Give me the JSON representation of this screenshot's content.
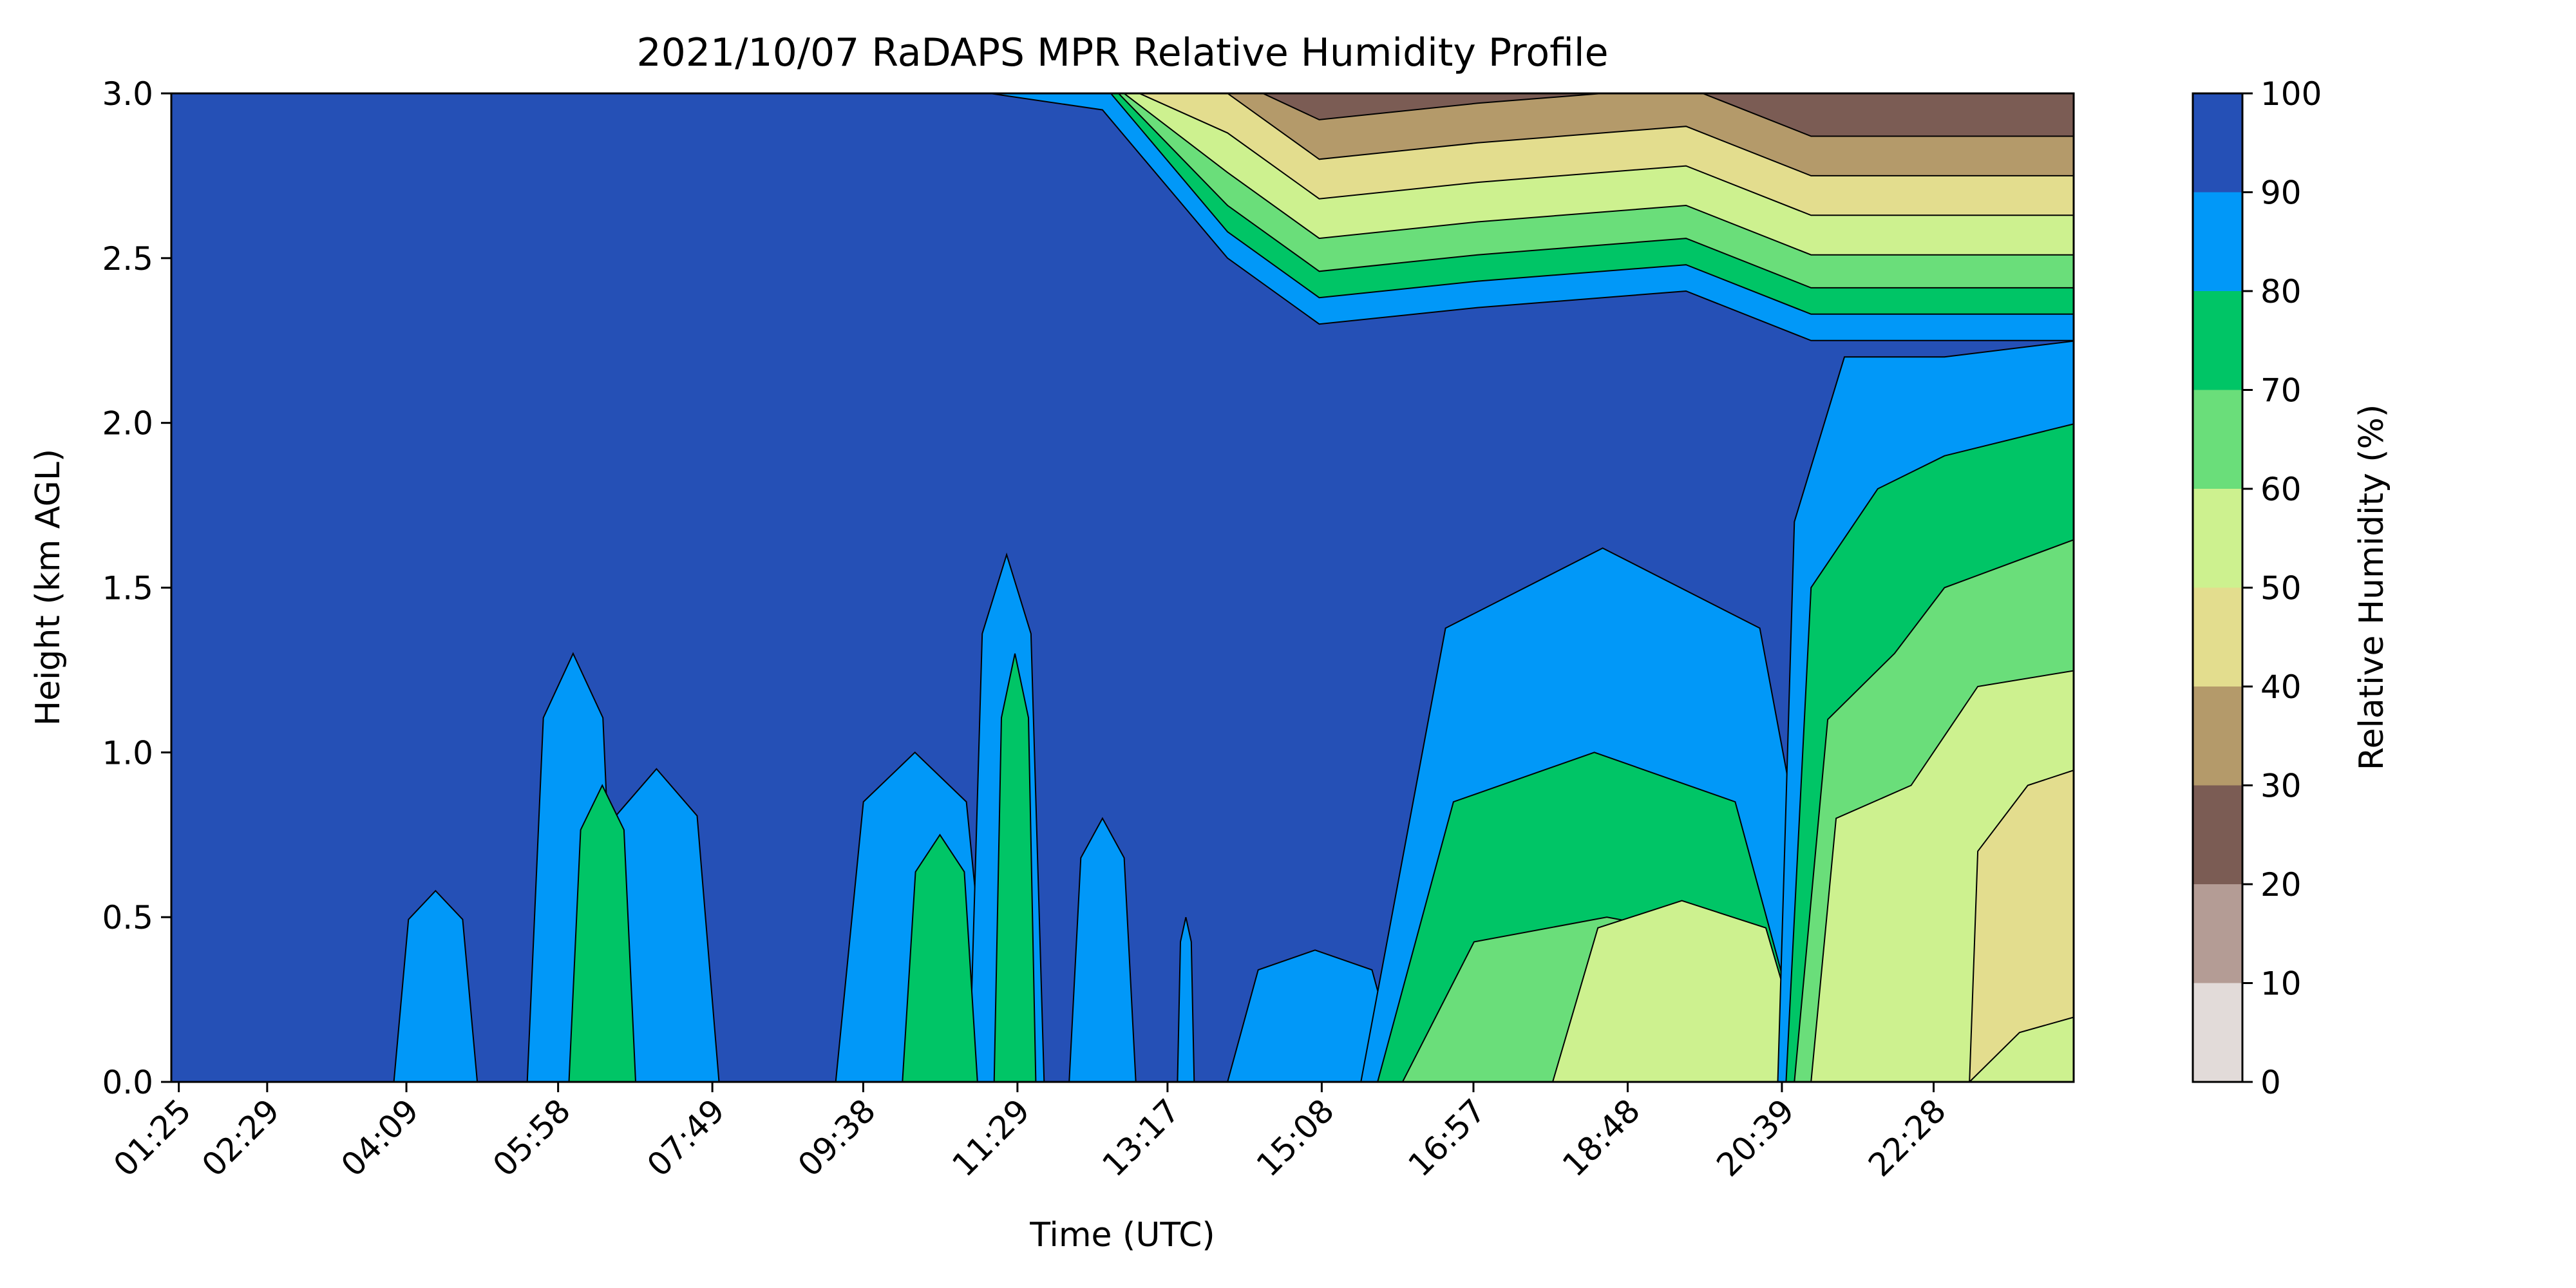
{
  "chart_data": {
    "type": "heatmap",
    "title": "2021/10/07 RaDAPS MPR Relative Humidity Profile",
    "xlabel": "Time (UTC)",
    "ylabel": "Height (km AGL)",
    "ylim": [
      0,
      3
    ],
    "yticks": [
      "0.0",
      "0.5",
      "1.0",
      "1.5",
      "2.0",
      "2.5",
      "3.0"
    ],
    "xticks": [
      "01:25",
      "02:29",
      "04:09",
      "05:58",
      "07:49",
      "09:38",
      "11:29",
      "13:17",
      "15:08",
      "16:57",
      "18:48",
      "20:39",
      "22:28"
    ],
    "x_hours": [
      1.42,
      2.48,
      4.15,
      5.97,
      7.82,
      9.63,
      11.48,
      13.28,
      15.13,
      16.95,
      18.8,
      20.65,
      22.47
    ],
    "xlim_hours": [
      1.33,
      24.15
    ],
    "colorbar": {
      "label": "Relative Humidity (%)",
      "ticks": [
        "0",
        "10",
        "20",
        "30",
        "40",
        "50",
        "60",
        "70",
        "80",
        "90",
        "100"
      ],
      "levels": [
        0,
        10,
        20,
        30,
        40,
        50,
        60,
        70,
        80,
        90,
        100
      ],
      "colors": [
        "#e2dbd9",
        "#b49c95",
        "#7b5c54",
        "#b49a6a",
        "#e3dd8e",
        "#cdf18f",
        "#6ade7a",
        "#00c566",
        "#0198f8",
        "#2550b6"
      ]
    },
    "grid": false,
    "profile_summary": {
      "description_levels": "RH regions by time (hours UTC) and height (km)",
      "saturated_layer_top_km": [
        {
          "t": 1.33,
          "h": 3.0
        },
        {
          "t": 9.0,
          "h": 3.0
        },
        {
          "t": 12.5,
          "h": 2.95
        },
        {
          "t": 14.0,
          "h": 2.5
        },
        {
          "t": 15.1,
          "h": 2.3
        },
        {
          "t": 17.0,
          "h": 2.35
        },
        {
          "t": 19.5,
          "h": 2.4
        },
        {
          "t": 21.0,
          "h": 2.25
        },
        {
          "t": 22.5,
          "h": 2.25
        },
        {
          "t": 24.15,
          "h": 2.25
        }
      ]
    }
  }
}
